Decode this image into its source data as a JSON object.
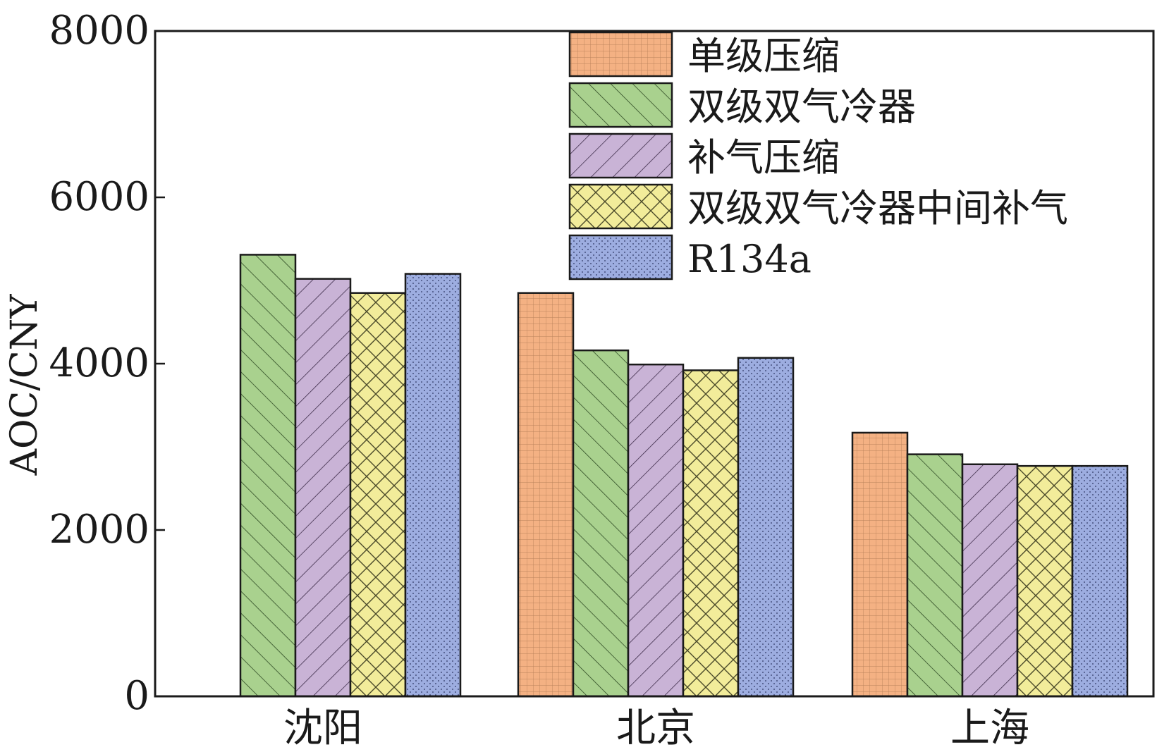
{
  "chart_data": {
    "type": "bar",
    "title": "",
    "xlabel": "",
    "ylabel": "AOC/CNY",
    "ylim": [
      0,
      8000
    ],
    "yticks": [
      0,
      2000,
      4000,
      6000,
      8000
    ],
    "categories": [
      "沈阳",
      "北京",
      "上海"
    ],
    "grid": false,
    "legend_position": "top-right",
    "series": [
      {
        "name": "单级压缩",
        "values": [
          null,
          4850,
          3170
        ],
        "color": "#f4b183",
        "pattern": "grid"
      },
      {
        "name": "双级双气冷器",
        "values": [
          5310,
          4160,
          2910
        ],
        "color": "#a9d18e",
        "pattern": "diag-up"
      },
      {
        "name": "补气压缩",
        "values": [
          5020,
          3990,
          2790
        ],
        "color": "#c9b3d6",
        "pattern": "diag-down"
      },
      {
        "name": "双级双气冷器中间补气",
        "values": [
          4850,
          3920,
          2770
        ],
        "color": "#f2ec9a",
        "pattern": "cross"
      },
      {
        "name": "R134a",
        "values": [
          5080,
          4070,
          2770
        ],
        "color": "#9dade0",
        "pattern": "dots"
      }
    ]
  }
}
